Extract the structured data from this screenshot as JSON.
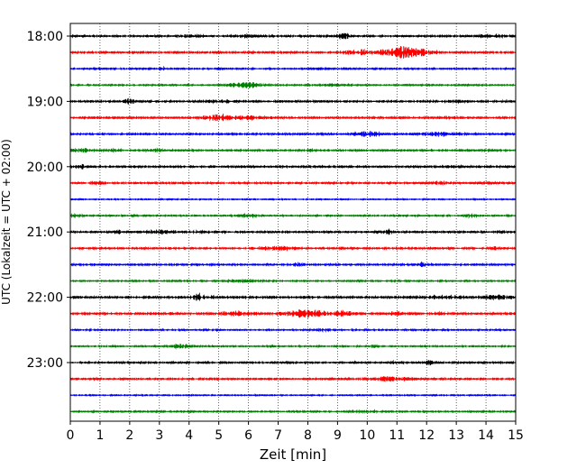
{
  "chart_data": {
    "type": "line",
    "title": "",
    "xlabel": "Zeit  [min]",
    "ylabel": "UTC (Lokalzeit = UTC + 02:00)",
    "xlim": [
      0,
      15
    ],
    "x_ticks": [
      "0",
      "1",
      "2",
      "3",
      "4",
      "5",
      "6",
      "7",
      "8",
      "9",
      "10",
      "11",
      "12",
      "13",
      "14",
      "15"
    ],
    "y_tick_labels": [
      "18:00",
      "19:00",
      "20:00",
      "21:00",
      "22:00",
      "23:00"
    ],
    "grid": "vertical-dotted",
    "colors": [
      "#000000",
      "#ff0000",
      "#0000ff",
      "#008000"
    ],
    "traces": [
      {
        "start": "18:00",
        "color": "#000000",
        "base": 2.0,
        "events": [
          [
            4.0,
            2,
            0.4
          ],
          [
            6.0,
            2,
            0.4
          ],
          [
            9.2,
            6,
            0.2
          ],
          [
            14.2,
            3,
            0.4
          ]
        ]
      },
      {
        "start": "18:15",
        "color": "#ff0000",
        "base": 2.0,
        "events": [
          [
            9.8,
            5,
            0.6
          ],
          [
            11.1,
            11,
            0.5
          ],
          [
            11.8,
            6,
            0.5
          ]
        ]
      },
      {
        "start": "18:30",
        "color": "#0000ff",
        "base": 1.5,
        "events": [
          [
            3.1,
            4,
            0.1
          ],
          [
            5.0,
            3,
            0.1
          ],
          [
            8.4,
            2,
            0.3
          ]
        ]
      },
      {
        "start": "18:45",
        "color": "#008000",
        "base": 1.5,
        "events": [
          [
            5.9,
            5,
            0.6
          ],
          [
            8.9,
            2,
            0.3
          ]
        ]
      },
      {
        "start": "19:00",
        "color": "#000000",
        "base": 2.0,
        "events": [
          [
            2.0,
            6,
            0.15
          ],
          [
            5.0,
            2,
            0.5
          ],
          [
            13.0,
            2,
            0.3
          ]
        ]
      },
      {
        "start": "19:15",
        "color": "#ff0000",
        "base": 2.0,
        "events": [
          [
            5.0,
            6,
            0.5
          ],
          [
            6.0,
            3,
            0.6
          ],
          [
            12.7,
            2,
            0.3
          ]
        ]
      },
      {
        "start": "19:30",
        "color": "#0000ff",
        "base": 2.0,
        "events": [
          [
            10.0,
            5,
            0.4
          ],
          [
            12.5,
            3,
            0.6
          ]
        ]
      },
      {
        "start": "19:45",
        "color": "#008000",
        "base": 1.8,
        "events": [
          [
            0.4,
            3,
            0.3
          ],
          [
            1.4,
            2,
            0.3
          ],
          [
            3.0,
            3,
            0.3
          ],
          [
            8.1,
            3,
            0.1
          ]
        ]
      },
      {
        "start": "20:00",
        "color": "#000000",
        "base": 2.0,
        "events": [
          [
            0.4,
            4,
            0.15
          ],
          [
            13.0,
            2,
            0.2
          ]
        ]
      },
      {
        "start": "20:15",
        "color": "#ff0000",
        "base": 1.8,
        "events": [
          [
            1.0,
            2,
            0.3
          ],
          [
            12.5,
            2,
            0.3
          ]
        ]
      },
      {
        "start": "20:30",
        "color": "#0000ff",
        "base": 1.2,
        "events": []
      },
      {
        "start": "20:45",
        "color": "#008000",
        "base": 1.5,
        "events": [
          [
            0.2,
            3,
            0.2
          ],
          [
            6.0,
            3,
            0.3
          ],
          [
            13.5,
            3,
            0.2
          ]
        ]
      },
      {
        "start": "21:00",
        "color": "#000000",
        "base": 2.0,
        "events": [
          [
            1.6,
            4,
            0.1
          ],
          [
            3.0,
            3,
            0.5
          ],
          [
            4.5,
            2,
            0.4
          ],
          [
            10.7,
            4,
            0.1
          ]
        ]
      },
      {
        "start": "21:15",
        "color": "#ff0000",
        "base": 1.8,
        "events": [
          [
            7.0,
            3,
            0.6
          ],
          [
            9.2,
            3,
            0.1
          ],
          [
            14.3,
            3,
            0.1
          ]
        ]
      },
      {
        "start": "21:30",
        "color": "#0000ff",
        "base": 1.8,
        "events": [
          [
            7.6,
            4,
            0.2
          ],
          [
            11.8,
            4,
            0.2
          ]
        ]
      },
      {
        "start": "21:45",
        "color": "#008000",
        "base": 1.5,
        "events": [
          [
            6.0,
            2,
            0.6
          ]
        ]
      },
      {
        "start": "22:00",
        "color": "#000000",
        "base": 2.4,
        "events": [
          [
            4.3,
            5,
            0.15
          ],
          [
            4.6,
            3,
            0.3
          ],
          [
            12.5,
            2,
            0.8
          ],
          [
            14.4,
            3,
            0.5
          ]
        ]
      },
      {
        "start": "22:15",
        "color": "#ff0000",
        "base": 2.2,
        "events": [
          [
            5.6,
            4,
            0.5
          ],
          [
            7.9,
            7,
            0.8
          ],
          [
            9.2,
            5,
            0.3
          ],
          [
            10.9,
            3,
            0.3
          ],
          [
            12.4,
            2,
            0.2
          ]
        ]
      },
      {
        "start": "22:30",
        "color": "#0000ff",
        "base": 1.5,
        "events": [
          [
            8.5,
            2,
            0.3
          ]
        ]
      },
      {
        "start": "22:45",
        "color": "#008000",
        "base": 1.5,
        "events": [
          [
            3.7,
            4,
            0.3
          ],
          [
            10.2,
            3,
            0.1
          ]
        ]
      },
      {
        "start": "23:00",
        "color": "#000000",
        "base": 1.8,
        "events": [
          [
            12.1,
            4,
            0.1
          ],
          [
            11.0,
            2,
            0.4
          ]
        ]
      },
      {
        "start": "23:15",
        "color": "#ff0000",
        "base": 1.8,
        "events": [
          [
            10.8,
            4,
            0.6
          ]
        ]
      },
      {
        "start": "23:30",
        "color": "#0000ff",
        "base": 1.2,
        "events": []
      },
      {
        "start": "23:45",
        "color": "#008000",
        "base": 1.5,
        "events": [
          [
            10.0,
            2,
            0.5
          ]
        ]
      }
    ]
  }
}
